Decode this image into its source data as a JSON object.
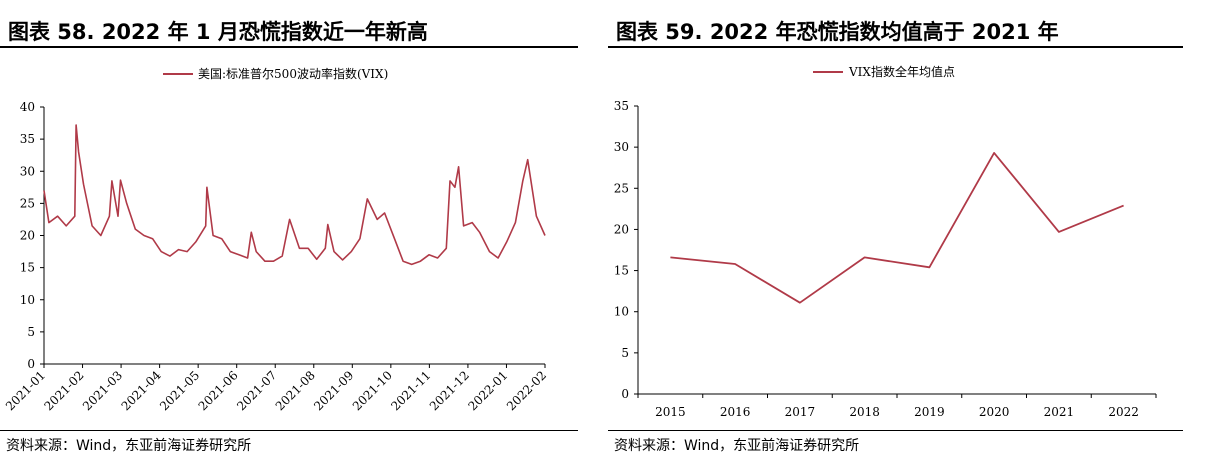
{
  "left_figure": {
    "title": "图表 58. 2022 年 1 月恐慌指数近一年新高",
    "source": "资料来源：Wind，东亚前海证券研究所"
  },
  "right_figure": {
    "title": "图表 59. 2022 年恐慌指数均值高于 2021 年",
    "source": "资料来源：Wind，东亚前海证券研究所"
  },
  "colors": {
    "series": "#b03a48",
    "axis": "#000000"
  },
  "chart_data": [
    {
      "type": "line",
      "title": "",
      "xlabel": "",
      "ylabel": "",
      "legend": "top",
      "grid": false,
      "ylim": [
        0,
        40
      ],
      "yticks": [
        0,
        5,
        10,
        15,
        20,
        25,
        30,
        35,
        40
      ],
      "xtick_labels": [
        "2021-01",
        "2021-02",
        "2021-03",
        "2021-04",
        "2021-05",
        "2021-06",
        "2021-07",
        "2021-08",
        "2021-09",
        "2021-10",
        "2021-11",
        "2021-12",
        "2022-01",
        "2022-02"
      ],
      "series": [
        {
          "name": "美国:标准普尔500波动率指数(VIX)",
          "x": [
            "2021-01-01",
            "2021-01-05",
            "2021-01-12",
            "2021-01-19",
            "2021-01-26",
            "2021-01-27",
            "2021-01-29",
            "2021-02-02",
            "2021-02-09",
            "2021-02-16",
            "2021-02-23",
            "2021-02-25",
            "2021-03-02",
            "2021-03-04",
            "2021-03-09",
            "2021-03-16",
            "2021-03-23",
            "2021-03-30",
            "2021-04-06",
            "2021-04-13",
            "2021-04-20",
            "2021-04-27",
            "2021-05-04",
            "2021-05-12",
            "2021-05-13",
            "2021-05-18",
            "2021-05-25",
            "2021-06-01",
            "2021-06-08",
            "2021-06-15",
            "2021-06-18",
            "2021-06-22",
            "2021-06-29",
            "2021-07-06",
            "2021-07-13",
            "2021-07-19",
            "2021-07-27",
            "2021-08-03",
            "2021-08-10",
            "2021-08-17",
            "2021-08-19",
            "2021-08-24",
            "2021-08-31",
            "2021-09-07",
            "2021-09-14",
            "2021-09-20",
            "2021-09-28",
            "2021-10-04",
            "2021-10-12",
            "2021-10-19",
            "2021-10-26",
            "2021-11-02",
            "2021-11-09",
            "2021-11-16",
            "2021-11-23",
            "2021-11-26",
            "2021-11-30",
            "2021-12-03",
            "2021-12-07",
            "2021-12-14",
            "2021-12-20",
            "2021-12-28",
            "2022-01-04",
            "2022-01-11",
            "2022-01-18",
            "2022-01-24",
            "2022-01-28",
            "2022-02-04",
            "2022-02-11"
          ],
          "values": [
            27,
            22,
            23,
            21.5,
            23,
            37.2,
            33,
            28,
            21.5,
            20,
            23,
            28.5,
            23,
            28.6,
            25,
            21,
            20,
            19.5,
            17.5,
            16.8,
            17.8,
            17.5,
            19,
            21.5,
            27.5,
            20,
            19.5,
            17.5,
            17,
            16.5,
            20.5,
            17.5,
            16,
            16,
            16.8,
            22.5,
            18,
            18,
            16.3,
            18,
            21.7,
            17.5,
            16.2,
            17.5,
            19.5,
            25.7,
            22.5,
            23.5,
            19.5,
            16,
            15.5,
            16,
            17,
            16.5,
            18,
            28.5,
            27.5,
            30.7,
            21.5,
            22,
            20.5,
            17.5,
            16.5,
            19,
            22,
            28.5,
            31.8,
            23,
            20
          ]
        }
      ]
    },
    {
      "type": "line",
      "title": "",
      "xlabel": "",
      "ylabel": "",
      "legend": "top",
      "grid": false,
      "ylim": [
        0,
        35
      ],
      "yticks": [
        0,
        5,
        10,
        15,
        20,
        25,
        30,
        35
      ],
      "categories": [
        "2015",
        "2016",
        "2017",
        "2018",
        "2019",
        "2020",
        "2021",
        "2022"
      ],
      "series": [
        {
          "name": "VIX指数全年均值点",
          "values": [
            16.6,
            15.8,
            11.1,
            16.6,
            15.4,
            29.3,
            19.7,
            22.9
          ]
        }
      ]
    }
  ]
}
